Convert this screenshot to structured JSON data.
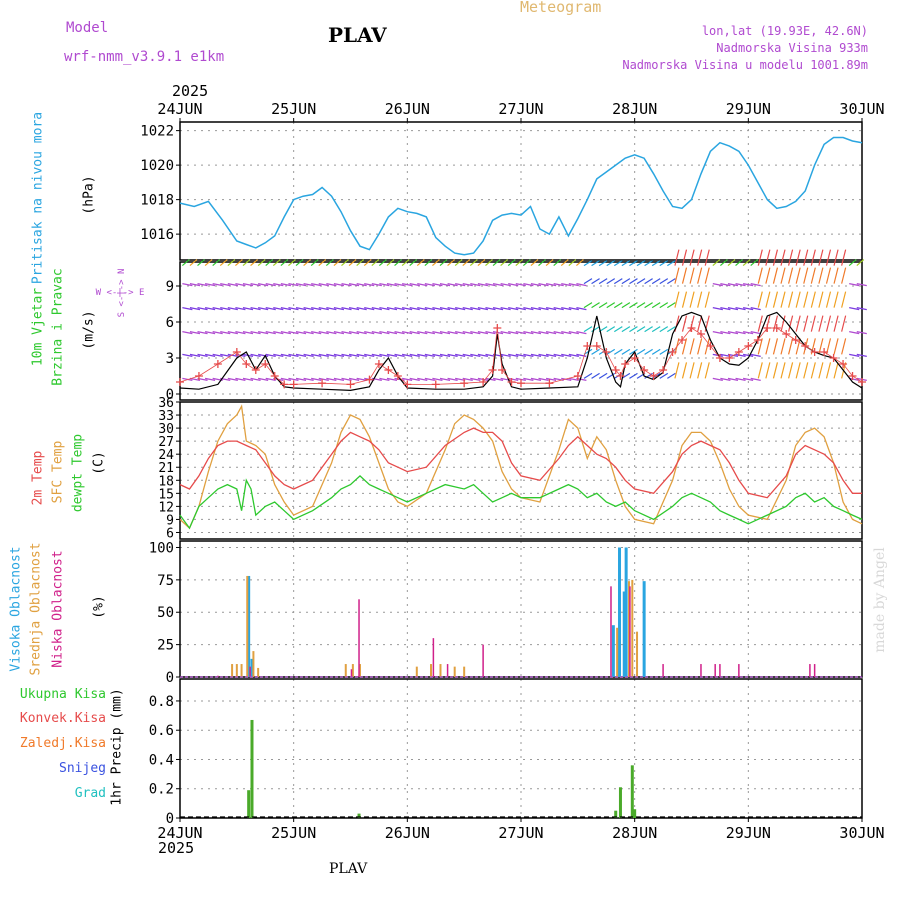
{
  "header": {
    "model_label": "Model",
    "model_name": "wrf-nmm_v3.9.1 e1km",
    "title": "PLAV",
    "meteogram": "Meteogram",
    "lonlat": "lon,lat (19.93E, 42.6N)",
    "altitude": "Nadmorska Visina 933m",
    "model_altitude": "Nadmorska Visina u modelu 1001.89m"
  },
  "colors": {
    "pressure": "#2aa5e0",
    "temp2m": "#e64b4b",
    "sfc": "#e0a040",
    "dew": "#2ec82e",
    "purple": "#b04ad0",
    "magenta": "#d0208a",
    "blue": "#3a52e0",
    "orange": "#f07a2a",
    "cyan": "#20c0c0",
    "green": "#4aaa2a"
  },
  "time_axis": {
    "year": "2025",
    "labels": [
      "24JUN",
      "25JUN",
      "26JUN",
      "27JUN",
      "28JUN",
      "29JUN",
      "30JUN"
    ]
  },
  "panel_labels": {
    "pressure": [
      "Pritisak na nivou mora",
      "(hPa)"
    ],
    "wind": [
      "10m Vjetar",
      "Brzina i Pravac",
      "(m/s)"
    ],
    "compass": [
      "W <-|-> E",
      "S <-|-> N"
    ],
    "temp": [
      "2m Temp",
      "SFC Temp",
      "dewpt Temp",
      "(C)"
    ],
    "cloud": [
      "Visoka Oblacnost",
      "Srednja Oblacnost",
      "Niska Oblacnost",
      "(%)"
    ],
    "precip_unit": "1hr Precip (mm)",
    "precip_legend": [
      "Ukupna Kisa",
      "Konvek.Kisa",
      "Zaledj.Kisa",
      "Snijeg",
      "Grad"
    ]
  },
  "watermark": "made by Angel",
  "footer": "PLAV",
  "chart_data": [
    {
      "type": "line",
      "name": "pressure",
      "ylim": [
        1014.5,
        1022.5
      ],
      "yticks": [
        1016,
        1018,
        1020,
        1022
      ],
      "x": [
        0,
        3,
        6,
        9,
        12,
        14,
        16,
        18,
        20,
        22,
        24,
        26,
        28,
        30,
        32,
        34,
        36,
        38,
        40,
        42,
        44,
        46,
        48,
        50,
        52,
        54,
        56,
        58,
        60,
        62,
        64,
        66,
        68,
        70,
        72,
        74,
        76,
        78,
        80,
        82,
        84,
        86,
        88,
        90,
        92,
        94,
        96,
        98,
        100,
        102,
        104,
        106,
        108,
        110,
        112,
        114,
        116,
        118,
        120,
        122,
        124,
        126,
        128,
        130,
        132,
        134,
        136,
        138,
        140,
        142,
        144
      ],
      "values": [
        1017.8,
        1017.6,
        1017.9,
        1016.8,
        1015.6,
        1015.4,
        1015.2,
        1015.5,
        1015.9,
        1017.0,
        1018.0,
        1018.2,
        1018.3,
        1018.7,
        1018.2,
        1017.3,
        1016.2,
        1015.3,
        1015.1,
        1016.0,
        1017.0,
        1017.5,
        1017.3,
        1017.2,
        1017.0,
        1015.8,
        1015.3,
        1014.9,
        1014.8,
        1014.9,
        1015.6,
        1016.8,
        1017.1,
        1017.2,
        1017.1,
        1017.6,
        1016.3,
        1016.0,
        1017.0,
        1015.9,
        1016.9,
        1018.0,
        1019.2,
        1019.6,
        1020.0,
        1020.4,
        1020.6,
        1020.4,
        1019.5,
        1018.5,
        1017.6,
        1017.5,
        1018.0,
        1019.5,
        1020.8,
        1021.3,
        1021.1,
        1020.8,
        1020.0,
        1019.0,
        1018.0,
        1017.5,
        1017.6,
        1017.9,
        1018.5,
        1020.0,
        1021.2,
        1021.6,
        1021.6,
        1021.4,
        1021.3
      ]
    },
    {
      "type": "line",
      "name": "wind",
      "ylim": [
        -0.5,
        11
      ],
      "yticks": [
        0,
        3,
        6,
        9
      ],
      "series": [
        {
          "name": "speed",
          "x": [
            0,
            4,
            8,
            12,
            14,
            16,
            18,
            20,
            22,
            24,
            30,
            36,
            40,
            42,
            44,
            46,
            48,
            54,
            60,
            64,
            66,
            67,
            68,
            70,
            72,
            78,
            84,
            86,
            88,
            90,
            92,
            93,
            94,
            96,
            98,
            100,
            102,
            104,
            106,
            108,
            110,
            112,
            114,
            116,
            118,
            120,
            122,
            124,
            126,
            128,
            130,
            132,
            134,
            136,
            138,
            140,
            142,
            144
          ],
          "values": [
            0.5,
            0.4,
            0.8,
            3.0,
            3.5,
            2.0,
            3.2,
            1.5,
            0.6,
            0.5,
            0.4,
            0.3,
            0.6,
            2.0,
            3.0,
            1.5,
            0.5,
            0.4,
            0.4,
            0.6,
            1.5,
            5.0,
            2.5,
            0.6,
            0.4,
            0.5,
            0.6,
            3.0,
            6.5,
            3.0,
            1.0,
            0.6,
            2.5,
            3.5,
            1.5,
            1.2,
            1.8,
            5.0,
            6.5,
            6.8,
            6.5,
            4.5,
            3.0,
            2.5,
            2.4,
            3.0,
            4.5,
            6.5,
            6.8,
            6.0,
            5.0,
            4.0,
            3.5,
            3.2,
            3.0,
            2.0,
            1.0,
            0.5
          ]
        },
        {
          "name": "gust",
          "x": [
            0,
            4,
            8,
            12,
            14,
            16,
            18,
            20,
            22,
            24,
            30,
            36,
            40,
            42,
            44,
            46,
            48,
            54,
            60,
            64,
            66,
            67,
            68,
            70,
            72,
            78,
            84,
            86,
            88,
            90,
            92,
            93,
            94,
            96,
            98,
            100,
            102,
            104,
            106,
            108,
            110,
            112,
            114,
            116,
            118,
            120,
            122,
            124,
            126,
            128,
            130,
            132,
            134,
            136,
            138,
            140,
            142,
            144
          ],
          "values": [
            1.0,
            1.5,
            2.5,
            3.5,
            2.5,
            2.0,
            2.5,
            1.5,
            0.8,
            0.8,
            0.9,
            0.8,
            1.2,
            2.5,
            2.0,
            1.5,
            0.8,
            0.8,
            0.9,
            1.0,
            2.0,
            5.5,
            2.0,
            1.0,
            0.9,
            0.9,
            1.5,
            4.0,
            4.0,
            3.5,
            2.0,
            1.5,
            2.5,
            3.0,
            2.0,
            1.5,
            2.0,
            3.5,
            4.5,
            5.5,
            5.0,
            4.0,
            3.0,
            3.0,
            3.5,
            4.0,
            4.5,
            5.5,
            5.5,
            5.0,
            4.5,
            4.0,
            3.5,
            3.5,
            3.0,
            2.5,
            1.5,
            1.0
          ]
        }
      ]
    },
    {
      "type": "line",
      "name": "temperature",
      "ylim": [
        4.5,
        36
      ],
      "yticks": [
        6,
        9,
        12,
        15,
        18,
        21,
        24,
        27,
        30,
        33,
        36
      ],
      "series": [
        {
          "name": "2m",
          "x": [
            0,
            2,
            4,
            6,
            8,
            10,
            12,
            14,
            16,
            18,
            20,
            22,
            24,
            28,
            32,
            34,
            36,
            38,
            40,
            42,
            44,
            46,
            48,
            52,
            56,
            60,
            62,
            64,
            66,
            68,
            70,
            72,
            76,
            80,
            82,
            84,
            86,
            88,
            90,
            92,
            94,
            96,
            100,
            104,
            106,
            108,
            110,
            112,
            114,
            116,
            118,
            120,
            124,
            128,
            130,
            132,
            134,
            136,
            138,
            140,
            142,
            144
          ],
          "values": [
            17,
            16,
            19,
            23,
            26,
            27,
            27,
            26,
            25,
            22,
            19,
            17,
            16,
            18,
            24,
            27,
            29,
            28,
            27,
            25,
            22,
            21,
            20,
            21,
            26,
            29,
            30,
            29,
            29,
            27,
            22,
            19,
            18,
            23,
            26,
            28,
            26,
            24,
            23,
            21,
            18,
            16,
            15,
            20,
            24,
            26,
            27,
            26,
            25,
            22,
            18,
            15,
            14,
            19,
            24,
            26,
            25,
            24,
            22,
            18,
            15,
            15
          ]
        },
        {
          "name": "SFC",
          "x": [
            0,
            2,
            4,
            6,
            8,
            10,
            12,
            13,
            14,
            16,
            18,
            20,
            22,
            24,
            28,
            32,
            34,
            36,
            38,
            40,
            42,
            44,
            46,
            48,
            52,
            56,
            58,
            60,
            62,
            64,
            66,
            68,
            70,
            72,
            76,
            80,
            82,
            84,
            86,
            88,
            90,
            92,
            94,
            96,
            100,
            104,
            106,
            108,
            110,
            112,
            114,
            116,
            118,
            120,
            124,
            128,
            130,
            132,
            134,
            136,
            138,
            140,
            142,
            144
          ],
          "values": [
            9,
            7,
            12,
            20,
            27,
            31,
            33,
            35,
            27,
            26,
            24,
            17,
            13,
            10,
            12,
            22,
            29,
            33,
            32,
            28,
            22,
            16,
            13,
            12,
            15,
            25,
            31,
            33,
            32,
            30,
            27,
            20,
            16,
            14,
            13,
            25,
            32,
            30,
            23,
            28,
            25,
            18,
            12,
            9,
            8,
            18,
            26,
            29,
            29,
            27,
            22,
            16,
            12,
            10,
            9,
            18,
            26,
            29,
            30,
            28,
            22,
            13,
            9,
            8
          ]
        },
        {
          "name": "dew",
          "x": [
            0,
            2,
            4,
            6,
            8,
            10,
            12,
            13,
            14,
            15,
            16,
            18,
            20,
            22,
            24,
            28,
            32,
            34,
            36,
            38,
            40,
            42,
            44,
            46,
            48,
            52,
            56,
            60,
            62,
            64,
            66,
            68,
            70,
            72,
            76,
            80,
            82,
            84,
            86,
            88,
            90,
            92,
            94,
            96,
            100,
            104,
            106,
            108,
            110,
            112,
            114,
            116,
            118,
            120,
            124,
            128,
            130,
            132,
            134,
            136,
            138,
            140,
            142,
            144
          ],
          "values": [
            10,
            7,
            12,
            14,
            16,
            17,
            16,
            11,
            18,
            16,
            10,
            12,
            13,
            11,
            9,
            11,
            14,
            16,
            17,
            19,
            17,
            16,
            15,
            14,
            13,
            15,
            17,
            16,
            17,
            15,
            13,
            14,
            15,
            14,
            14,
            16,
            17,
            16,
            14,
            15,
            13,
            12,
            13,
            11,
            9,
            12,
            14,
            15,
            14,
            13,
            11,
            10,
            9,
            8,
            10,
            12,
            14,
            15,
            13,
            14,
            12,
            11,
            10,
            9
          ]
        }
      ]
    },
    {
      "type": "bar",
      "name": "cloud",
      "ylim": [
        0,
        105
      ],
      "yticks": [
        0,
        25,
        50,
        75,
        100
      ],
      "series": [
        {
          "name": "high",
          "x": [
            14.5,
            15.2,
            91.5,
            92.8,
            93.8,
            94.2,
            98
          ],
          "values": [
            78,
            14,
            40,
            100,
            66,
            100,
            74
          ]
        },
        {
          "name": "mid",
          "x": [
            11,
            12,
            13,
            14.2,
            15.5,
            16.5,
            35,
            36.5,
            38,
            50,
            53,
            55,
            58,
            60,
            92.3,
            94.8,
            95.5,
            96.5
          ],
          "values": [
            10,
            10,
            10,
            78,
            20,
            7,
            10,
            10,
            10,
            8,
            10,
            10,
            8,
            8,
            38,
            74,
            75,
            35
          ]
        },
        {
          "name": "low",
          "x": [
            8,
            14.8,
            36.2,
            37.8,
            53.5,
            56.5,
            64,
            91,
            95,
            102,
            110,
            113,
            114,
            118,
            133,
            134
          ],
          "values": [
            1,
            8,
            6,
            60,
            30,
            10,
            25,
            70,
            70,
            10,
            10,
            10,
            10,
            10,
            10,
            10
          ]
        }
      ]
    },
    {
      "type": "bar",
      "name": "precip",
      "ylim": [
        0,
        0.95
      ],
      "yticks": [
        0,
        0.2,
        0.4,
        0.6,
        0.8
      ],
      "x": [
        14.5,
        15.2,
        37.8,
        92,
        93,
        95.5,
        96
      ],
      "values": [
        0.19,
        0.67,
        0.03,
        0.05,
        0.21,
        0.36,
        0.06
      ]
    }
  ]
}
